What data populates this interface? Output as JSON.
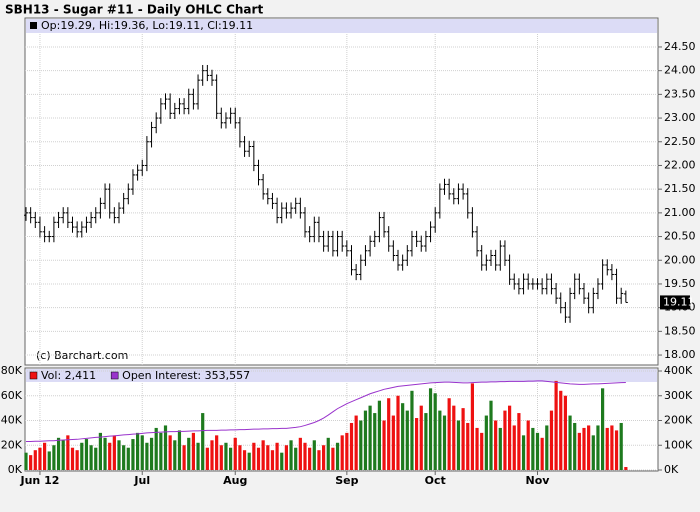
{
  "chart_data": [
    {
      "type": "ohlc",
      "title": "SBH13 - Sugar #11 - Daily OHLC Chart",
      "info": "Op:19.29, Hi:19.36, Lo:19.11, Cl:19.11",
      "watermark": "(c) Barchart.com",
      "color": "#000000",
      "grid": true,
      "ylim": [
        17.79,
        25.09
      ],
      "yticks": [
        {
          "value": 18,
          "label": "18.00"
        },
        {
          "value": 18.5,
          "label": "18.50"
        },
        {
          "value": 19,
          "label": "19.00"
        },
        {
          "value": 19.5,
          "label": "19.50"
        },
        {
          "value": 20,
          "label": "20.00"
        },
        {
          "value": 20.5,
          "label": "20.50"
        },
        {
          "value": 21,
          "label": "21.00"
        },
        {
          "value": 21.5,
          "label": "21.50"
        },
        {
          "value": 22,
          "label": "22.00"
        },
        {
          "value": 22.5,
          "label": "22.50"
        },
        {
          "value": 23,
          "label": "23.00"
        },
        {
          "value": 23.5,
          "label": "23.50"
        },
        {
          "value": 24,
          "label": "24.00"
        },
        {
          "value": 24.5,
          "label": "24.50"
        }
      ],
      "open": [
        20.95,
        21.0,
        20.9,
        20.8,
        20.6,
        20.5,
        20.5,
        20.8,
        20.9,
        21.0,
        20.8,
        20.7,
        20.6,
        20.7,
        20.8,
        20.9,
        21.0,
        21.2,
        21.5,
        21.0,
        20.9,
        21.1,
        21.3,
        21.5,
        21.8,
        21.9,
        22.0,
        22.5,
        22.8,
        23.0,
        23.3,
        23.4,
        23.1,
        23.2,
        23.3,
        23.2,
        23.5,
        23.3,
        23.8,
        24.0,
        23.9,
        23.8,
        23.1,
        22.9,
        23.0,
        23.1,
        22.9,
        22.5,
        22.3,
        22.4,
        22.0,
        21.7,
        21.4,
        21.3,
        21.2,
        20.9,
        21.1,
        21.0,
        21.1,
        21.2,
        21.0,
        20.6,
        20.5,
        20.8,
        20.5,
        20.3,
        20.5,
        20.2,
        20.5,
        20.3,
        20.2,
        19.8,
        19.7,
        20.0,
        20.2,
        20.4,
        20.5,
        20.9,
        20.6,
        20.3,
        20.1,
        19.9,
        20.0,
        20.2,
        20.5,
        20.4,
        20.3,
        20.5,
        20.7,
        21.0,
        21.5,
        21.6,
        21.4,
        21.3,
        21.5,
        21.4,
        21.0,
        20.6,
        20.2,
        19.9,
        20.0,
        20.1,
        19.9,
        20.3,
        20.0,
        19.6,
        19.5,
        19.4,
        19.6,
        19.5,
        19.5,
        19.5,
        19.4,
        19.6,
        19.4,
        19.2,
        19.0,
        18.8,
        19.3,
        19.6,
        19.4,
        19.2,
        19.0,
        19.3,
        19.5,
        19.9,
        19.8,
        19.7,
        19.2,
        19.29
      ],
      "high": [
        21.12,
        21.12,
        21.02,
        20.92,
        20.72,
        20.62,
        20.92,
        21.02,
        21.12,
        21.12,
        20.92,
        20.82,
        20.82,
        20.92,
        21.02,
        21.12,
        21.32,
        21.62,
        21.62,
        21.12,
        21.22,
        21.42,
        21.62,
        21.92,
        22.02,
        22.12,
        22.62,
        22.92,
        23.12,
        23.42,
        23.52,
        23.52,
        23.32,
        23.42,
        23.42,
        23.62,
        23.62,
        23.92,
        24.12,
        24.12,
        24.02,
        23.92,
        23.22,
        23.12,
        23.22,
        23.22,
        23.02,
        22.62,
        22.52,
        22.52,
        22.12,
        21.82,
        21.52,
        21.42,
        21.32,
        21.22,
        21.22,
        21.22,
        21.32,
        21.32,
        21.12,
        20.72,
        20.92,
        20.92,
        20.62,
        20.62,
        20.62,
        20.62,
        20.62,
        20.42,
        20.32,
        19.92,
        20.12,
        20.32,
        20.52,
        20.62,
        21.02,
        21.02,
        20.72,
        20.42,
        20.22,
        20.12,
        20.32,
        20.62,
        20.62,
        20.52,
        20.62,
        20.82,
        21.12,
        21.62,
        21.72,
        21.72,
        21.52,
        21.62,
        21.62,
        21.52,
        21.12,
        20.72,
        20.32,
        20.12,
        20.22,
        20.22,
        20.42,
        20.42,
        20.12,
        19.72,
        19.62,
        19.72,
        19.72,
        19.62,
        19.62,
        19.62,
        19.72,
        19.72,
        19.52,
        19.32,
        19.12,
        19.42,
        19.72,
        19.72,
        19.52,
        19.32,
        19.42,
        19.62,
        20.02,
        20.02,
        19.92,
        19.82,
        19.42,
        19.36
      ],
      "low": [
        20.83,
        20.78,
        20.68,
        20.48,
        20.38,
        20.38,
        20.38,
        20.68,
        20.78,
        20.68,
        20.58,
        20.48,
        20.48,
        20.58,
        20.68,
        20.78,
        20.88,
        21.08,
        20.88,
        20.78,
        20.78,
        20.98,
        21.18,
        21.38,
        21.68,
        21.78,
        21.88,
        22.38,
        22.68,
        22.88,
        23.18,
        22.98,
        22.98,
        23.08,
        23.08,
        23.08,
        23.18,
        23.18,
        23.68,
        23.78,
        23.68,
        22.98,
        22.78,
        22.78,
        22.88,
        22.78,
        22.38,
        22.18,
        22.18,
        21.88,
        21.58,
        21.28,
        21.18,
        21.08,
        20.78,
        20.78,
        20.88,
        20.88,
        20.98,
        20.88,
        20.48,
        20.38,
        20.38,
        20.38,
        20.18,
        20.18,
        20.08,
        20.08,
        20.18,
        20.08,
        19.68,
        19.58,
        19.58,
        19.88,
        20.08,
        20.28,
        20.38,
        20.48,
        20.18,
        19.98,
        19.78,
        19.78,
        19.88,
        20.08,
        20.28,
        20.18,
        20.18,
        20.38,
        20.58,
        20.88,
        21.38,
        21.28,
        21.18,
        21.18,
        21.28,
        20.88,
        20.48,
        20.08,
        19.78,
        19.78,
        19.88,
        19.78,
        19.78,
        19.88,
        19.48,
        19.38,
        19.28,
        19.28,
        19.38,
        19.38,
        19.38,
        19.28,
        19.28,
        19.28,
        19.08,
        18.88,
        18.68,
        18.68,
        19.18,
        19.28,
        19.08,
        18.88,
        18.88,
        19.18,
        19.38,
        19.68,
        19.58,
        19.08,
        19.08,
        19.11
      ],
      "close": [
        21.0,
        20.9,
        20.8,
        20.6,
        20.5,
        20.5,
        20.8,
        20.9,
        21.0,
        20.8,
        20.7,
        20.6,
        20.7,
        20.8,
        20.9,
        21.0,
        21.2,
        21.5,
        21.0,
        20.9,
        21.1,
        21.3,
        21.5,
        21.8,
        21.9,
        22.0,
        22.5,
        22.8,
        23.0,
        23.3,
        23.4,
        23.1,
        23.2,
        23.3,
        23.2,
        23.5,
        23.3,
        23.8,
        24.0,
        23.9,
        23.8,
        23.1,
        22.9,
        23.0,
        23.1,
        22.9,
        22.5,
        22.3,
        22.4,
        22.0,
        21.7,
        21.4,
        21.3,
        21.2,
        20.9,
        21.1,
        21.0,
        21.1,
        21.2,
        21.0,
        20.6,
        20.5,
        20.8,
        20.5,
        20.3,
        20.5,
        20.2,
        20.5,
        20.3,
        20.2,
        19.8,
        19.7,
        20.0,
        20.2,
        20.4,
        20.5,
        20.9,
        20.6,
        20.3,
        20.1,
        19.9,
        20.0,
        20.2,
        20.5,
        20.4,
        20.3,
        20.5,
        20.7,
        21.0,
        21.5,
        21.6,
        21.4,
        21.3,
        21.5,
        21.4,
        21.0,
        20.6,
        20.2,
        19.9,
        20.0,
        20.1,
        19.9,
        20.3,
        20.0,
        19.6,
        19.5,
        19.4,
        19.6,
        19.5,
        19.5,
        19.5,
        19.4,
        19.6,
        19.4,
        19.2,
        19.0,
        18.8,
        19.3,
        19.6,
        19.4,
        19.2,
        19.0,
        19.3,
        19.5,
        19.9,
        19.8,
        19.7,
        19.2,
        19.3,
        19.11
      ]
    },
    {
      "type": "volume",
      "grid": true,
      "up_color": "#1e7a1e",
      "down_color": "#ee1111",
      "categories": [
        null,
        null,
        null,
        "Jun 12",
        null,
        null,
        null,
        null,
        null,
        null,
        null,
        null,
        null,
        null,
        null,
        null,
        null,
        null,
        null,
        null,
        null,
        null,
        null,
        null,
        null,
        "Jul",
        null,
        null,
        null,
        null,
        null,
        null,
        null,
        null,
        null,
        null,
        null,
        null,
        null,
        null,
        null,
        null,
        null,
        null,
        null,
        "Aug",
        null,
        null,
        null,
        null,
        null,
        null,
        null,
        null,
        null,
        null,
        null,
        null,
        null,
        null,
        null,
        null,
        null,
        null,
        null,
        null,
        null,
        null,
        null,
        "Sep",
        null,
        null,
        null,
        null,
        null,
        null,
        null,
        null,
        null,
        null,
        null,
        null,
        null,
        null,
        null,
        null,
        null,
        null,
        "Oct",
        null,
        null,
        null,
        null,
        null,
        null,
        null,
        null,
        null,
        null,
        null,
        null,
        null,
        null,
        null,
        null,
        null,
        null,
        null,
        null,
        null,
        "Nov",
        null,
        null,
        null,
        null,
        null,
        null,
        null,
        null,
        null,
        null,
        null,
        null,
        null,
        null,
        null,
        null,
        null,
        null,
        null
      ],
      "ylim": [
        0,
        80
      ],
      "yticks": [
        {
          "value": 0,
          "label": "0K"
        },
        {
          "value": 20,
          "label": "20K"
        },
        {
          "value": 40,
          "label": "40K"
        },
        {
          "value": 60,
          "label": "60K"
        },
        {
          "value": 80,
          "label": "80K"
        }
      ],
      "y2lim": [
        0,
        400
      ],
      "y2ticks": [
        {
          "value": 0,
          "label": "0K"
        },
        {
          "value": 100,
          "label": "100K"
        },
        {
          "value": 200,
          "label": "200K"
        },
        {
          "value": 300,
          "label": "300K"
        },
        {
          "value": 400,
          "label": "400K"
        }
      ],
      "series": [
        {
          "name": "Vol: 2,411",
          "color": "#ee1111",
          "values": [
            14,
            12,
            16,
            18,
            22,
            15,
            20,
            26,
            24,
            28,
            18,
            16,
            22,
            25,
            20,
            18,
            30,
            26,
            22,
            28,
            24,
            20,
            18,
            25,
            30,
            28,
            22,
            26,
            34,
            30,
            36,
            28,
            24,
            32,
            20,
            26,
            30,
            22,
            46,
            18,
            24,
            28,
            20,
            22,
            18,
            26,
            20,
            16,
            14,
            22,
            18,
            24,
            20,
            16,
            22,
            14,
            20,
            24,
            18,
            26,
            22,
            18,
            24,
            16,
            20,
            26,
            18,
            22,
            28,
            30,
            38,
            44,
            40,
            48,
            52,
            46,
            56,
            40,
            58,
            44,
            60,
            54,
            48,
            64,
            42,
            52,
            46,
            66,
            62,
            48,
            44,
            58,
            52,
            40,
            50,
            38,
            70,
            34,
            30,
            44,
            56,
            40,
            34,
            48,
            52,
            36,
            46,
            28,
            40,
            34,
            30,
            26,
            36,
            48,
            72,
            64,
            60,
            44,
            38,
            30,
            34,
            36,
            28,
            36,
            66,
            34,
            36,
            32,
            38,
            2.411
          ]
        },
        {
          "name": "Open Interest: 353,557",
          "color": "#9933cc",
          "axis": "y2",
          "values": [
            115,
            115,
            116,
            116,
            117,
            118,
            118,
            120,
            121,
            122,
            123,
            124,
            126,
            128,
            130,
            132,
            133,
            135,
            137,
            138,
            140,
            142,
            143,
            145,
            146,
            148,
            150,
            151,
            152,
            153,
            154,
            155,
            155,
            156,
            156,
            157,
            158,
            158,
            159,
            160,
            160,
            160,
            161,
            161,
            162,
            162,
            163,
            163,
            164,
            165,
            165,
            166,
            166,
            167,
            167,
            168,
            168,
            170,
            172,
            175,
            180,
            186,
            192,
            200,
            210,
            222,
            235,
            248,
            258,
            268,
            276,
            284,
            292,
            300,
            308,
            314,
            320,
            326,
            330,
            334,
            338,
            340,
            342,
            344,
            346,
            348,
            350,
            352,
            353,
            354,
            355,
            355,
            354,
            353,
            352,
            352,
            353,
            354,
            355,
            355,
            356,
            356,
            357,
            357,
            358,
            358,
            358,
            358,
            359,
            359,
            360,
            360,
            358,
            356,
            354,
            352,
            350,
            348,
            347,
            346,
            346,
            347,
            348,
            348,
            349,
            350,
            351,
            352,
            353,
            353.557
          ]
        }
      ]
    }
  ]
}
